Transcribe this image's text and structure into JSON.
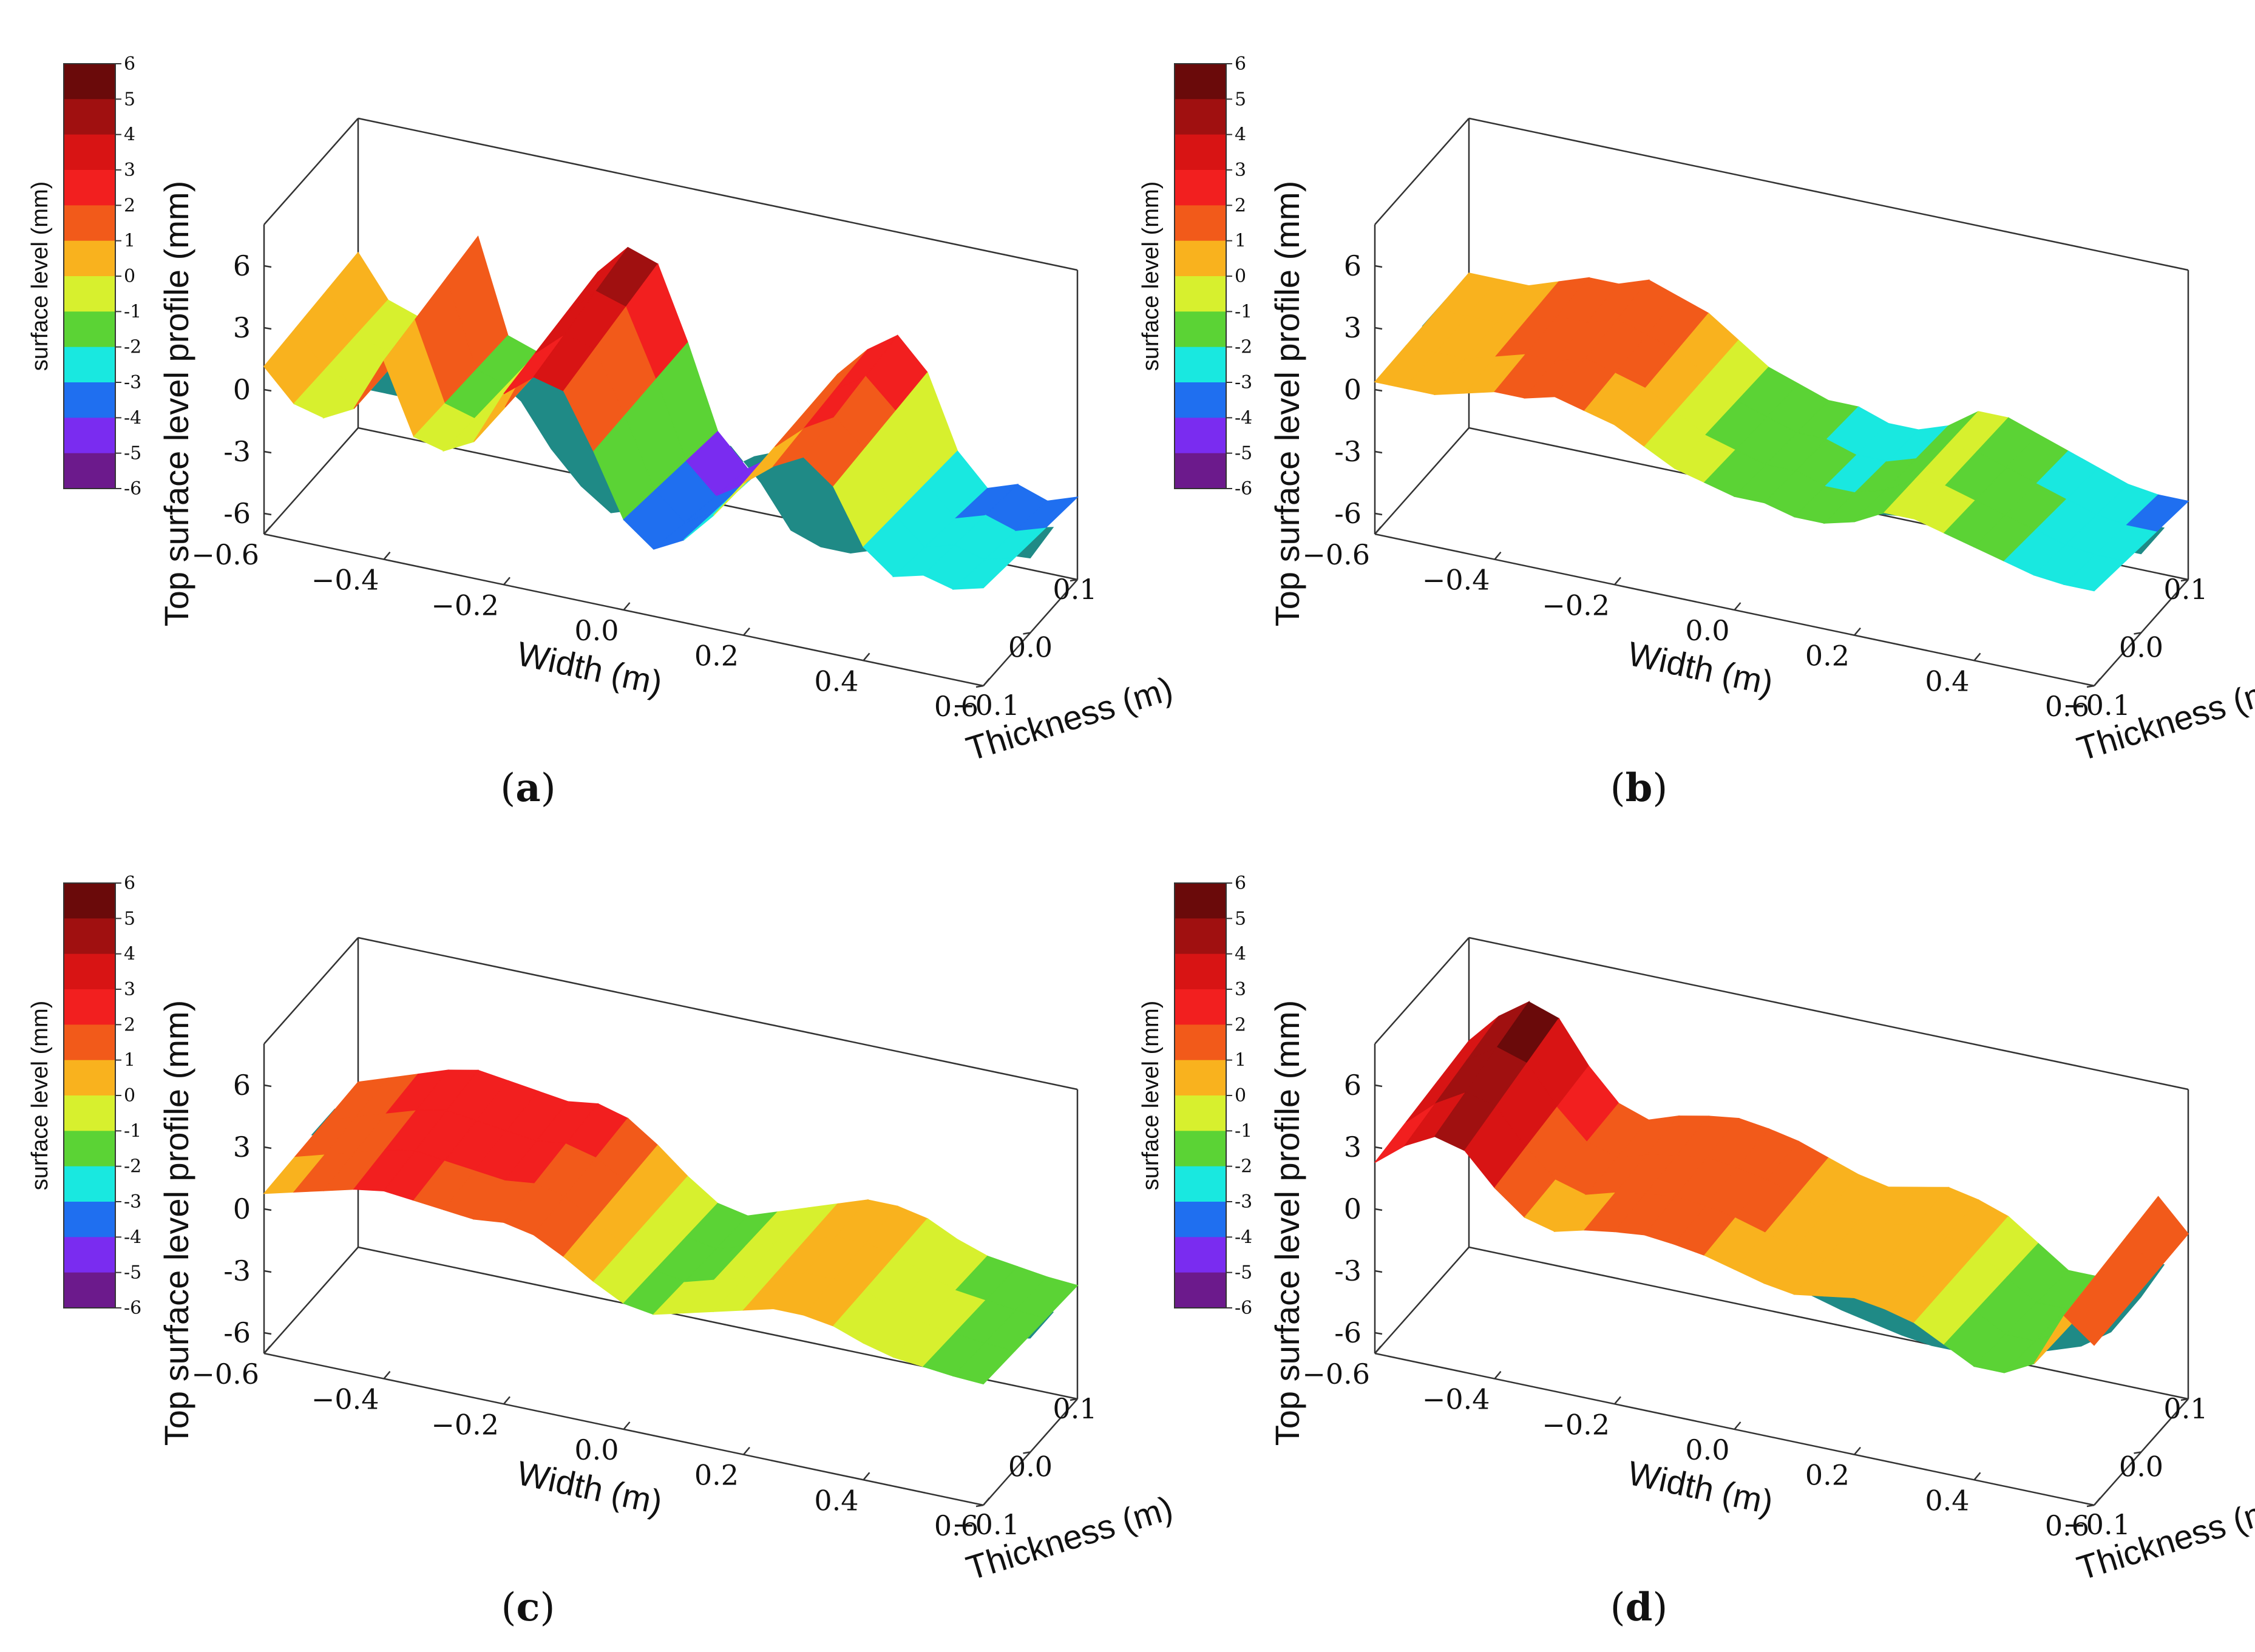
{
  "chart_data": [
    {
      "panel": "a",
      "type": "surface3d",
      "caption": "a",
      "zlabel": "Top surface level profile (mm)",
      "xlabel": "Width (m)",
      "ylabel": "Thickness (m)",
      "colorbar_label": "surface level (mm)",
      "x_ticks": [
        "-0.6",
        "-0.4",
        "-0.2",
        "0.0",
        "0.2",
        "0.4",
        "0.6"
      ],
      "y_ticks": [
        "-0.1",
        "0.0",
        "0.1"
      ],
      "z_ticks": [
        "6",
        "3",
        "0",
        "-3",
        "-6"
      ],
      "colorbar_ticks": [
        "6",
        "5",
        "4",
        "3",
        "2",
        "1",
        "0",
        "-1",
        "-2",
        "-3",
        "-4",
        "-5",
        "-6"
      ],
      "xlim": [
        -0.6,
        0.6
      ],
      "ylim": [
        -0.1,
        0.1
      ],
      "zlim": [
        -7,
        8
      ],
      "profile": {
        "width": [
          -0.6,
          -0.55,
          -0.5,
          -0.45,
          -0.4,
          -0.35,
          -0.3,
          -0.25,
          -0.2,
          -0.15,
          -0.1,
          -0.05,
          0.0,
          0.05,
          0.1,
          0.15,
          0.2,
          0.25,
          0.3,
          0.35,
          0.4,
          0.45,
          0.5,
          0.55,
          0.6
        ],
        "level": [
          1.5,
          -0.5,
          -1.0,
          0.0,
          3.5,
          -1.0,
          -1.5,
          -0.5,
          3.0,
          4.5,
          4.0,
          0.5,
          -3.5,
          -5.0,
          -4.0,
          -2.0,
          0.5,
          2.0,
          3.0,
          1.5,
          -2.0,
          -3.5,
          -3.0,
          -3.5,
          -3.0
        ],
        "trough": [
          1.0,
          -1.5,
          -2.0,
          -2.0,
          -1.5,
          -1.0,
          0.0,
          -1.0,
          -3.0,
          -4.5,
          -5.5,
          -5.0,
          -3.5,
          -2.0,
          -1.0,
          -2.5,
          -4.5,
          -5.0,
          -5.0,
          -4.5,
          -4.0,
          -3.8,
          -3.6,
          -3.5,
          -3.4
        ]
      }
    },
    {
      "panel": "b",
      "type": "surface3d",
      "caption": "b",
      "zlabel": "Top surface level profile (mm)",
      "xlabel": "Width (m)",
      "ylabel": "Thickness (m)",
      "colorbar_label": "surface level (mm)",
      "x_ticks": [
        "-0.6",
        "-0.4",
        "-0.2",
        "0.0",
        "0.2",
        "0.4",
        "0.6"
      ],
      "y_ticks": [
        "-0.1",
        "0.0",
        "0.1"
      ],
      "z_ticks": [
        "6",
        "3",
        "0",
        "-3",
        "-6"
      ],
      "colorbar_ticks": [
        "6",
        "5",
        "4",
        "3",
        "2",
        "1",
        "0",
        "-1",
        "-2",
        "-3",
        "-4",
        "-5",
        "-6"
      ],
      "xlim": [
        -0.6,
        0.6
      ],
      "ylim": [
        -0.1,
        0.1
      ],
      "zlim": [
        -7,
        8
      ],
      "profile": {
        "width": [
          -0.6,
          -0.55,
          -0.5,
          -0.45,
          -0.4,
          -0.35,
          -0.3,
          -0.25,
          -0.2,
          -0.15,
          -0.1,
          -0.05,
          0.0,
          0.05,
          0.1,
          0.15,
          0.2,
          0.25,
          0.3,
          0.35,
          0.4,
          0.45,
          0.5,
          0.55,
          0.6
        ],
        "level": [
          0.5,
          0.5,
          0.5,
          1.0,
          1.5,
          1.5,
          2.0,
          1.5,
          1.0,
          0.0,
          -1.0,
          -1.5,
          -2.0,
          -2.0,
          -2.5,
          -2.5,
          -2.0,
          -1.0,
          -1.0,
          -1.5,
          -2.0,
          -2.5,
          -3.0,
          -3.2,
          -3.2
        ],
        "trough": [
          0.5,
          0.3,
          0.0,
          -0.3,
          -0.5,
          -0.8,
          -1.0,
          -1.3,
          -1.8,
          -2.3,
          -2.8,
          -3.2,
          -3.5,
          -3.8,
          -4.0,
          -4.0,
          -3.8,
          -3.6,
          -3.5,
          -3.4,
          -3.3,
          -3.3,
          -3.2,
          -3.2,
          -3.2
        ]
      }
    },
    {
      "panel": "c",
      "type": "surface3d",
      "caption": "c",
      "zlabel": "Top surface level profile (mm)",
      "xlabel": "Width (m)",
      "ylabel": "Thickness (m)",
      "colorbar_label": "surface level (mm)",
      "x_ticks": [
        "-0.6",
        "-0.4",
        "-0.2",
        "0.0",
        "0.2",
        "0.4",
        "0.6"
      ],
      "y_ticks": [
        "-0.1",
        "0.0",
        "0.1"
      ],
      "z_ticks": [
        "6",
        "3",
        "0",
        "-3",
        "-6"
      ],
      "colorbar_ticks": [
        "6",
        "5",
        "4",
        "3",
        "2",
        "1",
        "0",
        "-1",
        "-2",
        "-3",
        "-4",
        "-5",
        "-6"
      ],
      "xlim": [
        -0.6,
        0.6
      ],
      "ylim": [
        -0.1,
        0.1
      ],
      "zlim": [
        -7,
        8
      ],
      "profile": {
        "width": [
          -0.6,
          -0.55,
          -0.5,
          -0.45,
          -0.4,
          -0.35,
          -0.3,
          -0.25,
          -0.2,
          -0.15,
          -0.1,
          -0.05,
          0.0,
          0.05,
          0.1,
          0.15,
          0.2,
          0.25,
          0.3,
          0.35,
          0.4,
          0.45,
          0.5,
          0.55,
          0.6
        ],
        "level": [
          1.0,
          1.5,
          2.0,
          2.5,
          2.8,
          2.6,
          2.4,
          2.2,
          2.4,
          2.0,
          1.0,
          -0.2,
          -1.2,
          -1.5,
          -1.0,
          -0.5,
          0.0,
          0.5,
          0.5,
          0.2,
          -0.5,
          -1.0,
          -1.2,
          -1.4,
          -1.5
        ],
        "trough": [
          1.0,
          1.2,
          1.3,
          1.4,
          1.4,
          1.2,
          1.0,
          0.8,
          0.3,
          -0.3,
          -1.0,
          -1.6,
          -2.2,
          -2.0,
          -1.5,
          -1.2,
          -1.5,
          -2.0,
          -2.3,
          -2.5,
          -2.5,
          -2.3,
          -2.0,
          -1.8,
          -1.5
        ]
      }
    },
    {
      "panel": "d",
      "type": "surface3d",
      "caption": "d",
      "zlabel": "Top surface level profile (mm)",
      "xlabel": "Width (m)",
      "ylabel": "Thickness (m)",
      "colorbar_label": "surface level (mm)",
      "x_ticks": [
        "-0.6",
        "-0.4",
        "-0.2",
        "0.0",
        "0.2",
        "0.4",
        "0.6"
      ],
      "y_ticks": [
        "-0.1",
        "0.0",
        "0.1"
      ],
      "z_ticks": [
        "6",
        "3",
        "0",
        "-3",
        "-6"
      ],
      "colorbar_ticks": [
        "6",
        "5",
        "4",
        "3",
        "2",
        "1",
        "0",
        "-1",
        "-2",
        "-3",
        "-4",
        "-5",
        "-6"
      ],
      "xlim": [
        -0.6,
        0.6
      ],
      "ylim": [
        -0.1,
        0.1
      ],
      "zlim": [
        -7,
        8
      ],
      "profile": {
        "width": [
          -0.6,
          -0.55,
          -0.5,
          -0.45,
          -0.4,
          -0.35,
          -0.3,
          -0.25,
          -0.2,
          -0.15,
          -0.1,
          -0.05,
          0.0,
          0.05,
          0.1,
          0.15,
          0.2,
          0.25,
          0.3,
          0.35,
          0.4,
          0.45,
          0.5,
          0.55,
          0.6
        ],
        "level": [
          3.0,
          4.5,
          5.5,
          5.0,
          3.0,
          1.5,
          1.0,
          1.5,
          1.8,
          2.0,
          1.8,
          1.5,
          1.0,
          0.5,
          0.2,
          0.5,
          0.8,
          0.5,
          0.0,
          -1.0,
          -2.0,
          -2.0,
          -1.0,
          2.5,
          1.0
        ],
        "trough": [
          2.5,
          2.0,
          1.5,
          1.0,
          0.5,
          0.3,
          0.2,
          0.0,
          -0.3,
          -0.8,
          -1.3,
          -1.8,
          -2.3,
          -2.8,
          -3.2,
          -3.5,
          -3.8,
          -4.0,
          -4.0,
          -3.8,
          -3.5,
          -3.0,
          -2.5,
          -1.5,
          0.5
        ]
      }
    }
  ],
  "colorscale": [
    {
      "from": 5,
      "to": 6,
      "color": "#6a0a0a"
    },
    {
      "from": 4,
      "to": 5,
      "color": "#a01010"
    },
    {
      "from": 3,
      "to": 4,
      "color": "#d81414"
    },
    {
      "from": 2,
      "to": 3,
      "color": "#f21f1f"
    },
    {
      "from": 1,
      "to": 2,
      "color": "#f25a1a"
    },
    {
      "from": 0,
      "to": 1,
      "color": "#f9b21e"
    },
    {
      "from": -1,
      "to": 0,
      "color": "#d7f02e"
    },
    {
      "from": -2,
      "to": -1,
      "color": "#5bd335"
    },
    {
      "from": -3,
      "to": -2,
      "color": "#19e8e0"
    },
    {
      "from": -4,
      "to": -3,
      "color": "#1f6ff0"
    },
    {
      "from": -5,
      "to": -4,
      "color": "#7a2cf0"
    },
    {
      "from": -6,
      "to": -5,
      "color": "#6c1a8c"
    }
  ],
  "underside_color": "#1f8a86"
}
